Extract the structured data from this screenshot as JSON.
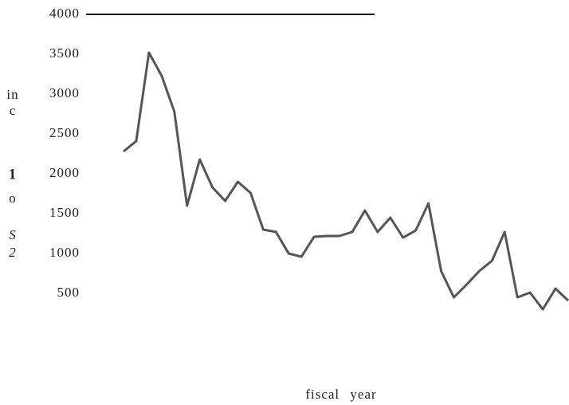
{
  "chart_data": {
    "type": "line",
    "xlabel": "fiscal year",
    "ylabel_parts": [
      "in",
      "c",
      "1",
      "o",
      "S",
      "2"
    ],
    "categories": [
      null,
      null,
      null,
      null,
      null,
      null,
      null,
      null,
      null,
      null,
      null,
      null,
      null,
      null,
      null,
      null,
      null,
      null,
      null,
      null,
      null,
      null,
      null,
      null,
      null,
      null,
      null,
      null,
      null,
      null,
      null,
      null,
      null,
      null,
      null,
      null
    ],
    "series": [
      {
        "color": "#555555",
        "values": [
          2280,
          2410,
          3520,
          3230,
          2780,
          1600,
          2180,
          1830,
          1660,
          1900,
          1760,
          1300,
          1270,
          1000,
          960,
          1210,
          1220,
          1220,
          1270,
          1540,
          1270,
          1450,
          1200,
          1290,
          1630,
          780,
          450,
          610,
          780,
          910,
          1270,
          450,
          510,
          300,
          560,
          410
        ]
      }
    ],
    "ylim": [
      0,
      4000
    ],
    "yticks": [
      500,
      1000,
      1500,
      2000,
      2500,
      3000,
      3500,
      4000
    ]
  }
}
